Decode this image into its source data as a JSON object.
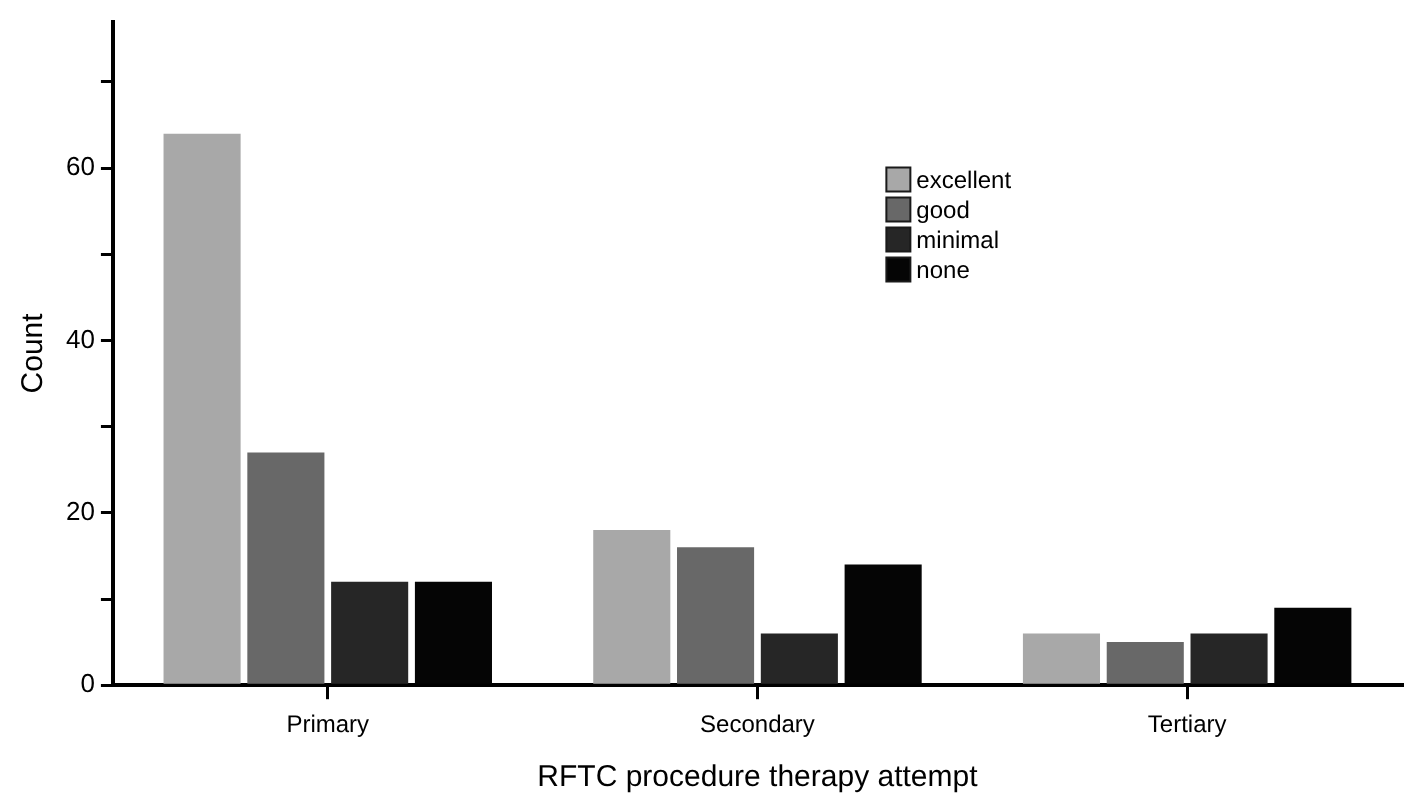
{
  "chart_data": {
    "type": "bar",
    "xlabel": "RFTC procedure therapy attempt",
    "ylabel": "Count",
    "categories": [
      "Primary",
      "Secondary",
      "Tertiary"
    ],
    "series": [
      {
        "name": "excellent",
        "color": "#a8a8a8",
        "values": [
          64,
          18,
          6
        ]
      },
      {
        "name": "good",
        "color": "#686868",
        "values": [
          27,
          16,
          5
        ]
      },
      {
        "name": "minimal",
        "color": "#262626",
        "values": [
          12,
          6,
          6
        ]
      },
      {
        "name": "none",
        "color": "#050505",
        "values": [
          12,
          14,
          9
        ]
      }
    ],
    "ylim": [
      0,
      77
    ],
    "yticks": [
      0,
      {
        "value": 10,
        "label": null
      },
      20,
      {
        "value": 30,
        "label": null
      },
      40,
      {
        "value": 50,
        "label": null
      },
      60,
      {
        "value": 70,
        "label": null
      }
    ],
    "grid": false,
    "legend": "right"
  }
}
